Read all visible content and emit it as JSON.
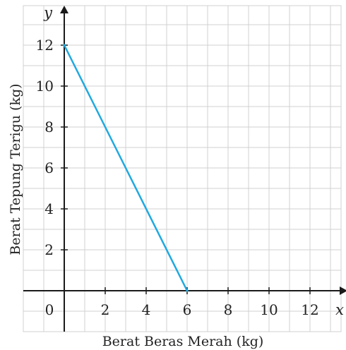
{
  "chart_data": {
    "type": "line",
    "x_var": "x",
    "y_var": "y",
    "xlabel": "Berat Beras Merah (kg)",
    "ylabel": "Berat Tepung Terigu (kg)",
    "origin_label": "0",
    "xlim": [
      -2,
      14
    ],
    "ylim": [
      -2,
      14
    ],
    "x_ticks": [
      2,
      4,
      6,
      8,
      10,
      12
    ],
    "y_ticks": [
      2,
      4,
      6,
      8,
      10,
      12
    ],
    "grid": true,
    "series": [
      {
        "x": [
          0,
          6
        ],
        "y": [
          12,
          0
        ],
        "color": "#1fa9e1"
      }
    ]
  }
}
